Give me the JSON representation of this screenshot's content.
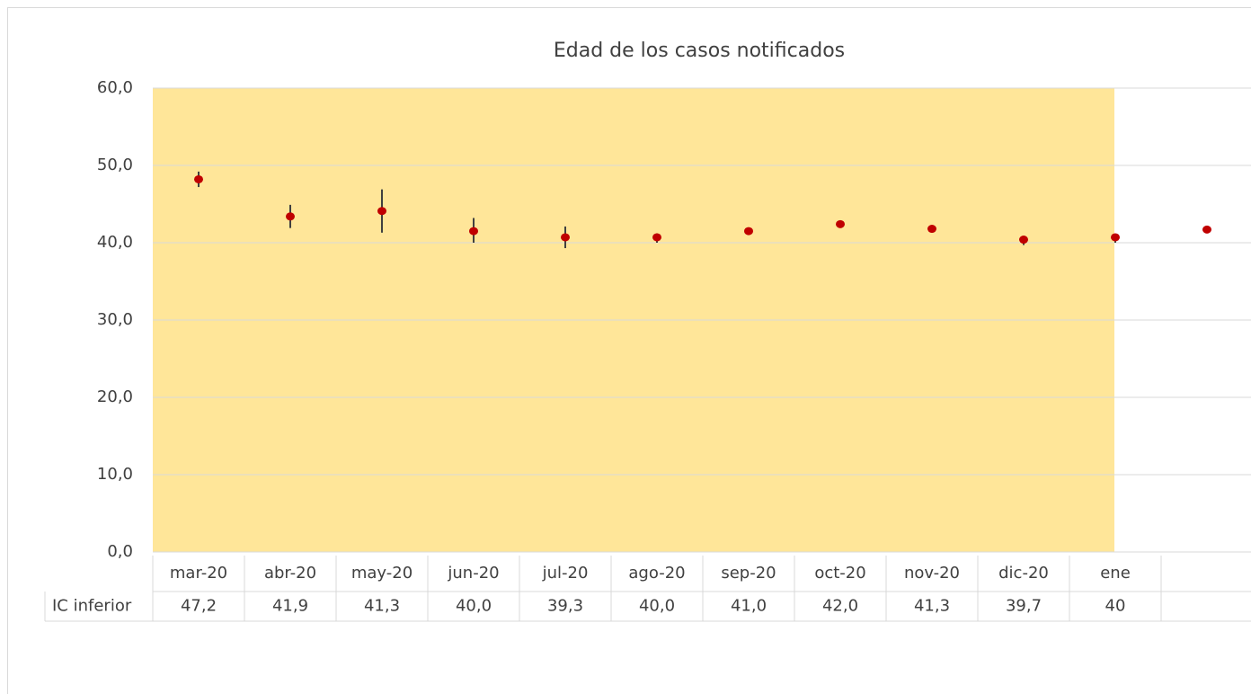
{
  "chart_data": {
    "type": "dot-errorbar",
    "title": "Edad de los casos notificados",
    "categories": [
      "mar-20",
      "abr-20",
      "may-20",
      "jun-20",
      "jul-20",
      "ago-20",
      "sep-20",
      "oct-20",
      "nov-20",
      "dic-20",
      "ene",
      null
    ],
    "values": [
      48.2,
      43.4,
      44.1,
      41.5,
      40.7,
      40.7,
      41.5,
      42.4,
      41.8,
      40.4,
      40.7,
      41.7
    ],
    "upper": [
      49.2,
      44.9,
      46.9,
      43.2,
      42.1,
      41.2,
      41.8,
      42.6,
      42.0,
      40.7,
      41.0,
      null
    ],
    "lower": {
      "name": "IC inferior",
      "values": [
        47.2,
        41.9,
        41.3,
        40.0,
        39.3,
        40.0,
        41.0,
        42.0,
        41.3,
        39.7,
        40,
        null
      ],
      "value_labels": [
        "47,2",
        "41,9",
        "41,3",
        "40,0",
        "39,3",
        "40,0",
        "41,0",
        "42,0",
        "41,3",
        "39,7",
        "40",
        null
      ]
    },
    "color": "#c00000",
    "plot_fill": "#ffe699",
    "ylim": [
      0,
      60
    ],
    "yticks": [
      {
        "value": 0,
        "label": "0,0"
      },
      {
        "value": 10,
        "label": "10,0"
      },
      {
        "value": 20,
        "label": "20,0"
      },
      {
        "value": 30,
        "label": "30,0"
      },
      {
        "value": 40,
        "label": "40,0"
      },
      {
        "value": 50,
        "label": "50,0"
      },
      {
        "value": 60,
        "label": "60,0"
      }
    ],
    "grid": true
  }
}
